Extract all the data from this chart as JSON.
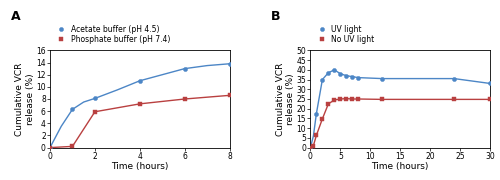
{
  "panel_A": {
    "label": "A",
    "blue_label": "Acetate buffer (pH 4.5)",
    "red_label": "Phosphate buffer (pH 7.4)",
    "blue_x": [
      0,
      0.5,
      1.0,
      1.5,
      2.0,
      3.0,
      4.0,
      5.0,
      6.0,
      7.0,
      8.0
    ],
    "blue_y": [
      0,
      3.5,
      6.3,
      7.5,
      8.1,
      9.5,
      11.0,
      12.0,
      13.0,
      13.5,
      13.8
    ],
    "red_x": [
      0,
      1.0,
      2.0,
      4.0,
      6.0,
      8.0
    ],
    "red_y": [
      0,
      0.2,
      5.9,
      7.2,
      8.0,
      8.6
    ],
    "blue_markers_x": [
      0,
      1.0,
      2.0,
      4.0,
      6.0,
      8.0
    ],
    "blue_markers_y": [
      0,
      6.3,
      8.1,
      11.0,
      13.0,
      13.8
    ],
    "red_markers_x": [
      0,
      1.0,
      2.0,
      4.0,
      6.0,
      8.0
    ],
    "red_markers_y": [
      0,
      0.2,
      5.9,
      7.2,
      8.0,
      8.6
    ],
    "xlim": [
      0,
      8
    ],
    "ylim": [
      0,
      16
    ],
    "yticks": [
      0,
      2,
      4,
      6,
      8,
      10,
      12,
      14,
      16
    ],
    "xticks": [
      0,
      2,
      4,
      6,
      8
    ],
    "xlabel": "Time (hours)",
    "ylabel": "Cumulative VCR\nrelease (%)"
  },
  "panel_B": {
    "label": "B",
    "blue_label": "UV light",
    "red_label": "No UV light",
    "blue_x": [
      0,
      0.5,
      1.0,
      2.0,
      3.0,
      4.0,
      5.0,
      6.0,
      7.0,
      8.0,
      12.0,
      24.0,
      30.0
    ],
    "blue_y": [
      0,
      6.0,
      17.5,
      35.0,
      38.5,
      40.0,
      38.0,
      37.0,
      36.5,
      36.0,
      35.5,
      35.5,
      33.0
    ],
    "red_x": [
      0,
      0.5,
      1.0,
      2.0,
      3.0,
      4.0,
      5.0,
      6.0,
      7.0,
      8.0,
      12.0,
      24.0,
      30.0
    ],
    "red_y": [
      0,
      1.0,
      6.3,
      14.8,
      22.5,
      24.5,
      25.0,
      25.2,
      25.0,
      25.0,
      24.8,
      24.8,
      24.8
    ],
    "blue_markers_x": [
      0,
      1.0,
      2.0,
      3.0,
      4.0,
      5.0,
      6.0,
      7.0,
      8.0,
      12.0,
      24.0,
      30.0
    ],
    "blue_markers_y": [
      0,
      17.5,
      35.0,
      38.5,
      40.0,
      38.0,
      37.0,
      36.5,
      36.0,
      35.5,
      35.5,
      33.0
    ],
    "red_markers_x": [
      0,
      0.5,
      1.0,
      2.0,
      3.0,
      4.0,
      5.0,
      6.0,
      7.0,
      8.0,
      12.0,
      24.0,
      30.0
    ],
    "red_markers_y": [
      0,
      1.0,
      6.3,
      14.8,
      22.5,
      24.5,
      25.0,
      25.2,
      25.0,
      25.0,
      24.8,
      24.8,
      24.8
    ],
    "xlim": [
      0,
      30
    ],
    "ylim": [
      0,
      50
    ],
    "yticks": [
      0,
      5,
      10,
      15,
      20,
      25,
      30,
      35,
      40,
      45,
      50
    ],
    "xticks": [
      0,
      5,
      10,
      15,
      20,
      25,
      30
    ],
    "xlabel": "Time (hours)",
    "ylabel": "Cumulative VCR\nrelease (%)"
  },
  "blue_color": "#4C86C6",
  "red_color": "#B94040",
  "tick_fontsize": 5.5,
  "legend_fontsize": 5.5,
  "axis_label_fontsize": 6.5,
  "panel_label_fontsize": 9
}
